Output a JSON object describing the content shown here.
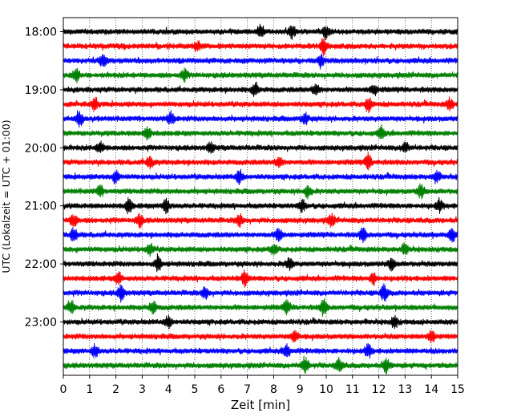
{
  "chart_data": {
    "type": "line",
    "chart_kind": "helicorder",
    "xlabel": "Zeit  [min]",
    "ylabel": "UTC (Lokalzeit = UTC + 01:00)",
    "xlim": [
      0,
      15
    ],
    "x_ticks": [
      0,
      1,
      2,
      3,
      4,
      5,
      6,
      7,
      8,
      9,
      10,
      11,
      12,
      13,
      14,
      15
    ],
    "x_tick_labels": [
      "0",
      "1",
      "2",
      "3",
      "4",
      "5",
      "6",
      "7",
      "8",
      "9",
      "10",
      "11",
      "12",
      "13",
      "14",
      "15"
    ],
    "y_tick_labels": [
      "18:00",
      "19:00",
      "20:00",
      "21:00",
      "22:00",
      "23:00"
    ],
    "grid": "vertical dotted lines at each minute",
    "traces_per_hour": 4,
    "color_cycle": [
      "#000000",
      "#ff0000",
      "#0000ff",
      "#008000"
    ],
    "series": [
      {
        "start": "18:00"
      },
      {
        "start": "18:15"
      },
      {
        "start": "18:30"
      },
      {
        "start": "18:45"
      },
      {
        "start": "19:00"
      },
      {
        "start": "19:15"
      },
      {
        "start": "19:30"
      },
      {
        "start": "19:45"
      },
      {
        "start": "20:00"
      },
      {
        "start": "20:15"
      },
      {
        "start": "20:30"
      },
      {
        "start": "20:45"
      },
      {
        "start": "21:00"
      },
      {
        "start": "21:15"
      },
      {
        "start": "21:30"
      },
      {
        "start": "21:45"
      },
      {
        "start": "22:00"
      },
      {
        "start": "22:15"
      },
      {
        "start": "22:30"
      },
      {
        "start": "22:45"
      },
      {
        "start": "23:00"
      },
      {
        "start": "23:15"
      },
      {
        "start": "23:30"
      },
      {
        "start": "23:45"
      }
    ],
    "events": [
      {
        "trace": 0,
        "x": 7.5,
        "amp": 1.6
      },
      {
        "trace": 0,
        "x": 8.7,
        "amp": 1.4
      },
      {
        "trace": 0,
        "x": 10.0,
        "amp": 1.3
      },
      {
        "trace": 1,
        "x": 9.9,
        "amp": 1.9
      },
      {
        "trace": 1,
        "x": 5.1,
        "amp": 1.2
      },
      {
        "trace": 2,
        "x": 1.5,
        "amp": 1.6
      },
      {
        "trace": 2,
        "x": 9.8,
        "amp": 1.3
      },
      {
        "trace": 3,
        "x": 0.5,
        "amp": 1.5
      },
      {
        "trace": 3,
        "x": 4.6,
        "amp": 1.3
      },
      {
        "trace": 4,
        "x": 7.3,
        "amp": 1.6
      },
      {
        "trace": 4,
        "x": 9.6,
        "amp": 1.5
      },
      {
        "trace": 4,
        "x": 11.8,
        "amp": 1.3
      },
      {
        "trace": 5,
        "x": 1.2,
        "amp": 1.3
      },
      {
        "trace": 5,
        "x": 11.6,
        "amp": 1.7
      },
      {
        "trace": 5,
        "x": 14.7,
        "amp": 1.3
      },
      {
        "trace": 6,
        "x": 0.6,
        "amp": 1.8
      },
      {
        "trace": 6,
        "x": 4.1,
        "amp": 1.5
      },
      {
        "trace": 6,
        "x": 9.2,
        "amp": 1.4
      },
      {
        "trace": 7,
        "x": 3.2,
        "amp": 1.5
      },
      {
        "trace": 7,
        "x": 12.1,
        "amp": 1.3
      },
      {
        "trace": 8,
        "x": 1.4,
        "amp": 1.3
      },
      {
        "trace": 8,
        "x": 5.6,
        "amp": 1.2
      },
      {
        "trace": 8,
        "x": 13.0,
        "amp": 1.2
      },
      {
        "trace": 9,
        "x": 3.3,
        "amp": 1.5
      },
      {
        "trace": 9,
        "x": 8.2,
        "amp": 1.4
      },
      {
        "trace": 9,
        "x": 11.6,
        "amp": 1.8
      },
      {
        "trace": 10,
        "x": 2.0,
        "amp": 1.4
      },
      {
        "trace": 10,
        "x": 6.7,
        "amp": 1.5
      },
      {
        "trace": 10,
        "x": 14.2,
        "amp": 1.3
      },
      {
        "trace": 11,
        "x": 9.3,
        "amp": 1.4
      },
      {
        "trace": 11,
        "x": 13.6,
        "amp": 1.6
      },
      {
        "trace": 11,
        "x": 1.4,
        "amp": 1.2
      },
      {
        "trace": 12,
        "x": 2.5,
        "amp": 1.7
      },
      {
        "trace": 12,
        "x": 3.9,
        "amp": 1.8
      },
      {
        "trace": 12,
        "x": 9.1,
        "amp": 1.3
      },
      {
        "trace": 12,
        "x": 14.3,
        "amp": 1.4
      },
      {
        "trace": 13,
        "x": 0.4,
        "amp": 1.5
      },
      {
        "trace": 13,
        "x": 2.9,
        "amp": 1.5
      },
      {
        "trace": 13,
        "x": 6.7,
        "amp": 1.4
      },
      {
        "trace": 13,
        "x": 10.2,
        "amp": 1.3
      },
      {
        "trace": 14,
        "x": 0.4,
        "amp": 1.6
      },
      {
        "trace": 14,
        "x": 8.2,
        "amp": 1.5
      },
      {
        "trace": 14,
        "x": 11.4,
        "amp": 1.6
      },
      {
        "trace": 14,
        "x": 14.8,
        "amp": 1.5
      },
      {
        "trace": 15,
        "x": 3.3,
        "amp": 1.4
      },
      {
        "trace": 15,
        "x": 8.0,
        "amp": 1.3
      },
      {
        "trace": 15,
        "x": 13.0,
        "amp": 1.2
      },
      {
        "trace": 16,
        "x": 3.6,
        "amp": 1.7
      },
      {
        "trace": 16,
        "x": 12.5,
        "amp": 1.5
      },
      {
        "trace": 16,
        "x": 8.6,
        "amp": 1.4
      },
      {
        "trace": 17,
        "x": 6.9,
        "amp": 2.0
      },
      {
        "trace": 17,
        "x": 2.1,
        "amp": 1.3
      },
      {
        "trace": 17,
        "x": 11.8,
        "amp": 1.4
      },
      {
        "trace": 18,
        "x": 2.2,
        "amp": 2.0
      },
      {
        "trace": 18,
        "x": 12.2,
        "amp": 2.1
      },
      {
        "trace": 18,
        "x": 5.4,
        "amp": 1.3
      },
      {
        "trace": 19,
        "x": 0.3,
        "amp": 1.6
      },
      {
        "trace": 19,
        "x": 3.4,
        "amp": 1.5
      },
      {
        "trace": 19,
        "x": 8.5,
        "amp": 1.7
      },
      {
        "trace": 19,
        "x": 9.9,
        "amp": 1.8
      },
      {
        "trace": 20,
        "x": 4.0,
        "amp": 1.3
      },
      {
        "trace": 20,
        "x": 12.6,
        "amp": 1.4
      },
      {
        "trace": 21,
        "x": 8.8,
        "amp": 1.5
      },
      {
        "trace": 21,
        "x": 14.0,
        "amp": 1.4
      },
      {
        "trace": 22,
        "x": 1.2,
        "amp": 1.4
      },
      {
        "trace": 22,
        "x": 8.5,
        "amp": 1.6
      },
      {
        "trace": 22,
        "x": 11.6,
        "amp": 1.5
      },
      {
        "trace": 23,
        "x": 9.2,
        "amp": 2.0
      },
      {
        "trace": 23,
        "x": 10.5,
        "amp": 1.6
      },
      {
        "trace": 23,
        "x": 12.3,
        "amp": 1.7
      }
    ]
  }
}
